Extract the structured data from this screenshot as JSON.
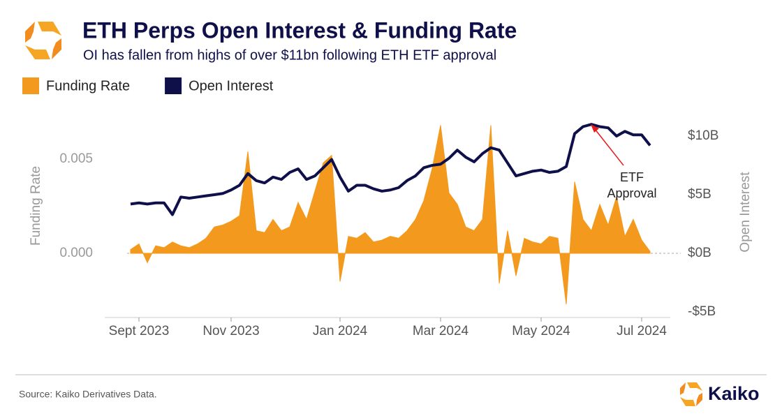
{
  "chart_data": {
    "type": "line-area",
    "title": "ETH Perps Open Interest & Funding Rate",
    "subtitle": "OI has fallen from highs of over $11bn following ETH ETF approval",
    "y_label": "Funding Rate",
    "y2_label": "Open Interest",
    "source": "Source: Kaiko Derivatives Data.",
    "brand": "Kaiko",
    "annotation": {
      "lines": [
        "ETF",
        "Approval"
      ]
    },
    "categories": [
      null,
      "Sept 2023",
      null,
      null,
      null,
      null,
      null,
      null,
      null,
      null,
      null,
      null,
      "Nov 2023",
      null,
      null,
      null,
      null,
      null,
      null,
      null,
      null,
      null,
      null,
      null,
      null,
      "Jan 2024",
      null,
      null,
      null,
      null,
      null,
      null,
      null,
      null,
      null,
      null,
      null,
      "Mar 2024",
      null,
      null,
      null,
      null,
      null,
      null,
      null,
      null,
      null,
      null,
      null,
      "May 2024",
      null,
      null,
      null,
      null,
      null,
      null,
      null,
      null,
      null,
      null,
      null,
      "Jul 2024",
      null
    ],
    "series": [
      {
        "name": "Funding Rate",
        "color": "#f39a1e",
        "kind": "area",
        "axis": "y",
        "values": [
          0.0002,
          0.0005,
          -0.0005,
          0.0004,
          0.0003,
          0.0006,
          0.0004,
          0.0003,
          0.0005,
          0.0008,
          0.0014,
          0.0015,
          0.0017,
          0.002,
          0.0054,
          0.0012,
          0.0011,
          0.0018,
          0.0012,
          0.0014,
          0.0027,
          0.0018,
          0.0033,
          0.0048,
          0.0052,
          -0.0015,
          0.0009,
          0.0008,
          0.0011,
          0.0006,
          0.0007,
          0.0009,
          0.0008,
          0.0012,
          0.0018,
          0.0028,
          0.0045,
          0.0068,
          0.0032,
          0.0026,
          0.0014,
          0.0012,
          0.0018,
          0.0068,
          -0.0016,
          0.0012,
          -0.0012,
          0.0008,
          0.0006,
          0.0005,
          0.0009,
          0.0008,
          -0.0027,
          0.0038,
          0.0018,
          0.0012,
          0.0026,
          0.0015,
          0.003,
          0.0009,
          0.0018,
          0.0007,
          0.0001
        ]
      },
      {
        "name": "Open Interest",
        "color": "#0f0f4a",
        "kind": "line",
        "axis": "y2",
        "values": [
          4.2,
          4.3,
          4.2,
          4.3,
          4.3,
          3.3,
          4.8,
          4.7,
          4.8,
          4.9,
          5.0,
          5.1,
          5.4,
          5.8,
          6.8,
          6.2,
          6.0,
          6.5,
          6.3,
          6.9,
          7.2,
          6.3,
          6.6,
          7.3,
          8.0,
          6.5,
          5.3,
          5.8,
          5.8,
          5.5,
          5.3,
          5.4,
          5.6,
          6.2,
          6.6,
          7.3,
          7.5,
          7.6,
          8.1,
          8.8,
          8.2,
          7.8,
          8.5,
          9.0,
          8.8,
          7.7,
          6.6,
          6.8,
          7.0,
          7.1,
          6.9,
          7.0,
          7.4,
          10.2,
          10.8,
          11.0,
          10.8,
          10.7,
          10.0,
          10.4,
          10.1,
          10.1,
          9.2
        ]
      }
    ],
    "ylim": [
      -0.0035,
      0.0075
    ],
    "yticks": [
      {
        "value": 0,
        "label": "0.000"
      },
      {
        "value": 0.005,
        "label": "0.005"
      }
    ],
    "y2lim": [
      -5.625,
      12.05
    ],
    "y2ticks": [
      {
        "value": -5,
        "label": "-$5B"
      },
      {
        "value": 0,
        "label": "$0B"
      },
      {
        "value": 5,
        "label": "$5B"
      },
      {
        "value": 10,
        "label": "$10B"
      }
    ],
    "legend": "top-left"
  }
}
